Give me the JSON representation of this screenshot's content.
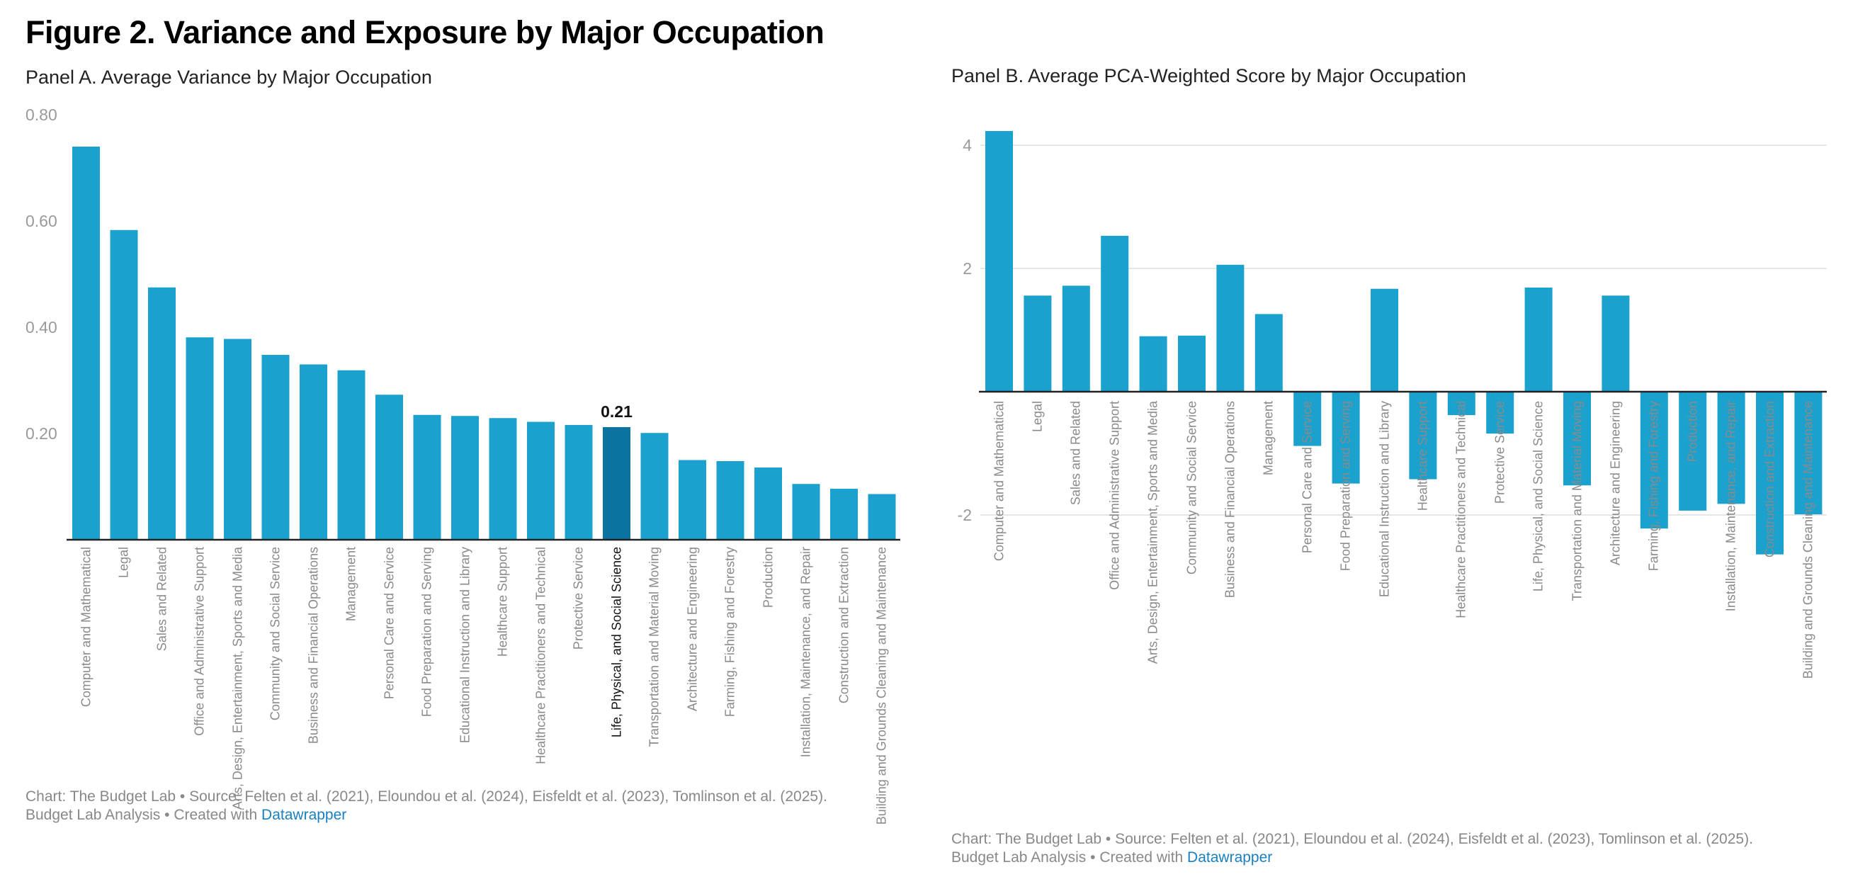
{
  "title": "Figure 2. Variance and Exposure by Major Occupation",
  "footer": {
    "line1": "Chart: The Budget Lab • Source: Felten et al. (2021), Eloundou et al. (2024), Eisfeldt et al. (2023), Tomlinson et al. (2025).",
    "line2_prefix": "Budget Lab Analysis • Created with ",
    "link": "Datawrapper"
  },
  "colors": {
    "bar": "#1ba1cd",
    "highlight": "#0a73a0",
    "grid": "#e6e6e6",
    "axis": "#222222",
    "tick": "#9a9a9a"
  },
  "chart_data": [
    {
      "type": "bar",
      "title": "Panel A. Average Variance by Major Occupation",
      "xlabel": "",
      "ylabel": "",
      "ylim": [
        0,
        0.8
      ],
      "yticks": [
        "0.20",
        "0.40",
        "0.60",
        "0.80"
      ],
      "ytick_values": [
        0.2,
        0.4,
        0.6,
        0.8
      ],
      "grid": false,
      "highlight_index": 14,
      "highlight_label": "0.21",
      "categories": [
        "Computer and Mathematical",
        "Legal",
        "Sales and Related",
        "Office and Administrative Support",
        "Arts, Design, Entertainment, Sports and Media",
        "Community and Social Service",
        "Business and Financial Operations",
        "Management",
        "Personal Care and Service",
        "Food Preparation and Serving",
        "Educational Instruction and Library",
        "Healthcare Support",
        "Healthcare Practitioners and Technical",
        "Protective Service",
        "Life, Physical, and Social Science",
        "Transportation and Material Moving",
        "Architecture and Engineering",
        "Farming, Fishing and Forestry",
        "Production",
        "Installation, Maintenance, and Repair",
        "Construction and Extraction",
        "Building and Grounds Cleaning and Maintenance"
      ],
      "values": [
        0.74,
        0.583,
        0.475,
        0.381,
        0.378,
        0.348,
        0.33,
        0.319,
        0.273,
        0.235,
        0.233,
        0.229,
        0.222,
        0.216,
        0.212,
        0.201,
        0.15,
        0.148,
        0.136,
        0.105,
        0.096,
        0.086
      ]
    },
    {
      "type": "bar",
      "title": "Panel B. Average PCA-Weighted Score by Major Occupation",
      "xlabel": "",
      "ylabel": "",
      "ylim": [
        -2.7,
        4.3
      ],
      "yticks": [
        "-2",
        "2",
        "4"
      ],
      "ytick_values": [
        -2,
        2,
        4
      ],
      "grid": true,
      "categories": [
        "Computer and Mathematical",
        "Legal",
        "Sales and Related",
        "Office and Administrative Support",
        "Arts, Design, Entertainment, Sports and Media",
        "Community and Social Service",
        "Business and Financial Operations",
        "Management",
        "Personal Care and Service",
        "Food Preparation and Serving",
        "Educational Instruction and Library",
        "Healthcare Support",
        "Healthcare Practitioners and Technical",
        "Protective Service",
        "Life, Physical, and Social Science",
        "Transportation and Material Moving",
        "Architecture and Engineering",
        "Farming, Fishing and Forestry",
        "Production",
        "Installation, Maintenance, and Repair",
        "Construction and Extraction",
        "Building and Grounds Cleaning and Maintenance"
      ],
      "values": [
        4.23,
        1.56,
        1.72,
        2.53,
        0.9,
        0.91,
        2.06,
        1.26,
        -0.88,
        -1.49,
        1.67,
        -1.42,
        -0.38,
        -0.68,
        1.69,
        -1.52,
        1.56,
        -2.22,
        -1.93,
        -1.82,
        -2.64,
        -1.99
      ]
    }
  ]
}
